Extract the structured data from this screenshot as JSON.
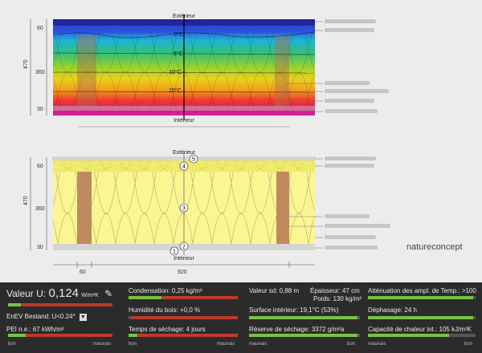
{
  "diagram": {
    "top_section": {
      "exterior_label": "Extérieur",
      "interior_label": "Intérieur",
      "temps": [
        "0°C",
        "5°C",
        "10°C",
        "15°C"
      ],
      "dims_left": [
        "60",
        "360",
        "30"
      ],
      "total_left": "470"
    },
    "bottom_section": {
      "exterior_label": "Extérieur",
      "interior_label": "Intérieur",
      "layer_numbers": [
        "5",
        "4",
        "3",
        "2",
        "1"
      ],
      "dims_left": [
        "60",
        "360",
        "30"
      ],
      "total_left": "470",
      "dims_bottom": [
        "60",
        "920"
      ]
    },
    "brand": "natureconcept"
  },
  "panel": {
    "u_value_label": "Valeur U:",
    "u_value": "0,124",
    "u_unit": "W/m²K",
    "enev_label": "EnEV Bestand: U<0.24*",
    "pei_label": "PEI n.e.: 67 kWh/m²",
    "condensation": "Condensation: 0,25 kg/m²",
    "humidite": "Humidité du bois: +0,0 %",
    "temps_sechage": "Temps de séchage: 4 jours",
    "valeur_sd": "Valeur sd: 0,88 m",
    "epaisseur": "Épaisseur: 47 cm",
    "poids": "Poids: 130 kg/m²",
    "surface_interieur": "Surface intérieur: 19,1°C (53%)",
    "reserve_sechage": "Réserve de séchage: 3372 g/m²a",
    "attenuation": "Atténuation des ampl. de Temp.: >100",
    "dephasage": "Déphasage: 24 h",
    "capacite": "Capacité de chaleur int.: 105 kJ/m²K",
    "bon": "bon",
    "mauvais": "mauvais",
    "levels": {
      "u_value": 0.12,
      "pei": 0.18,
      "condensation": 0.3,
      "humidite": 0.0,
      "temps_sechage": 0.08,
      "surface_interieur": 0.98,
      "reserve_sechage": 0.98,
      "attenuation": 0.98,
      "dephasage": 0.98,
      "capacite": 0.75
    }
  }
}
